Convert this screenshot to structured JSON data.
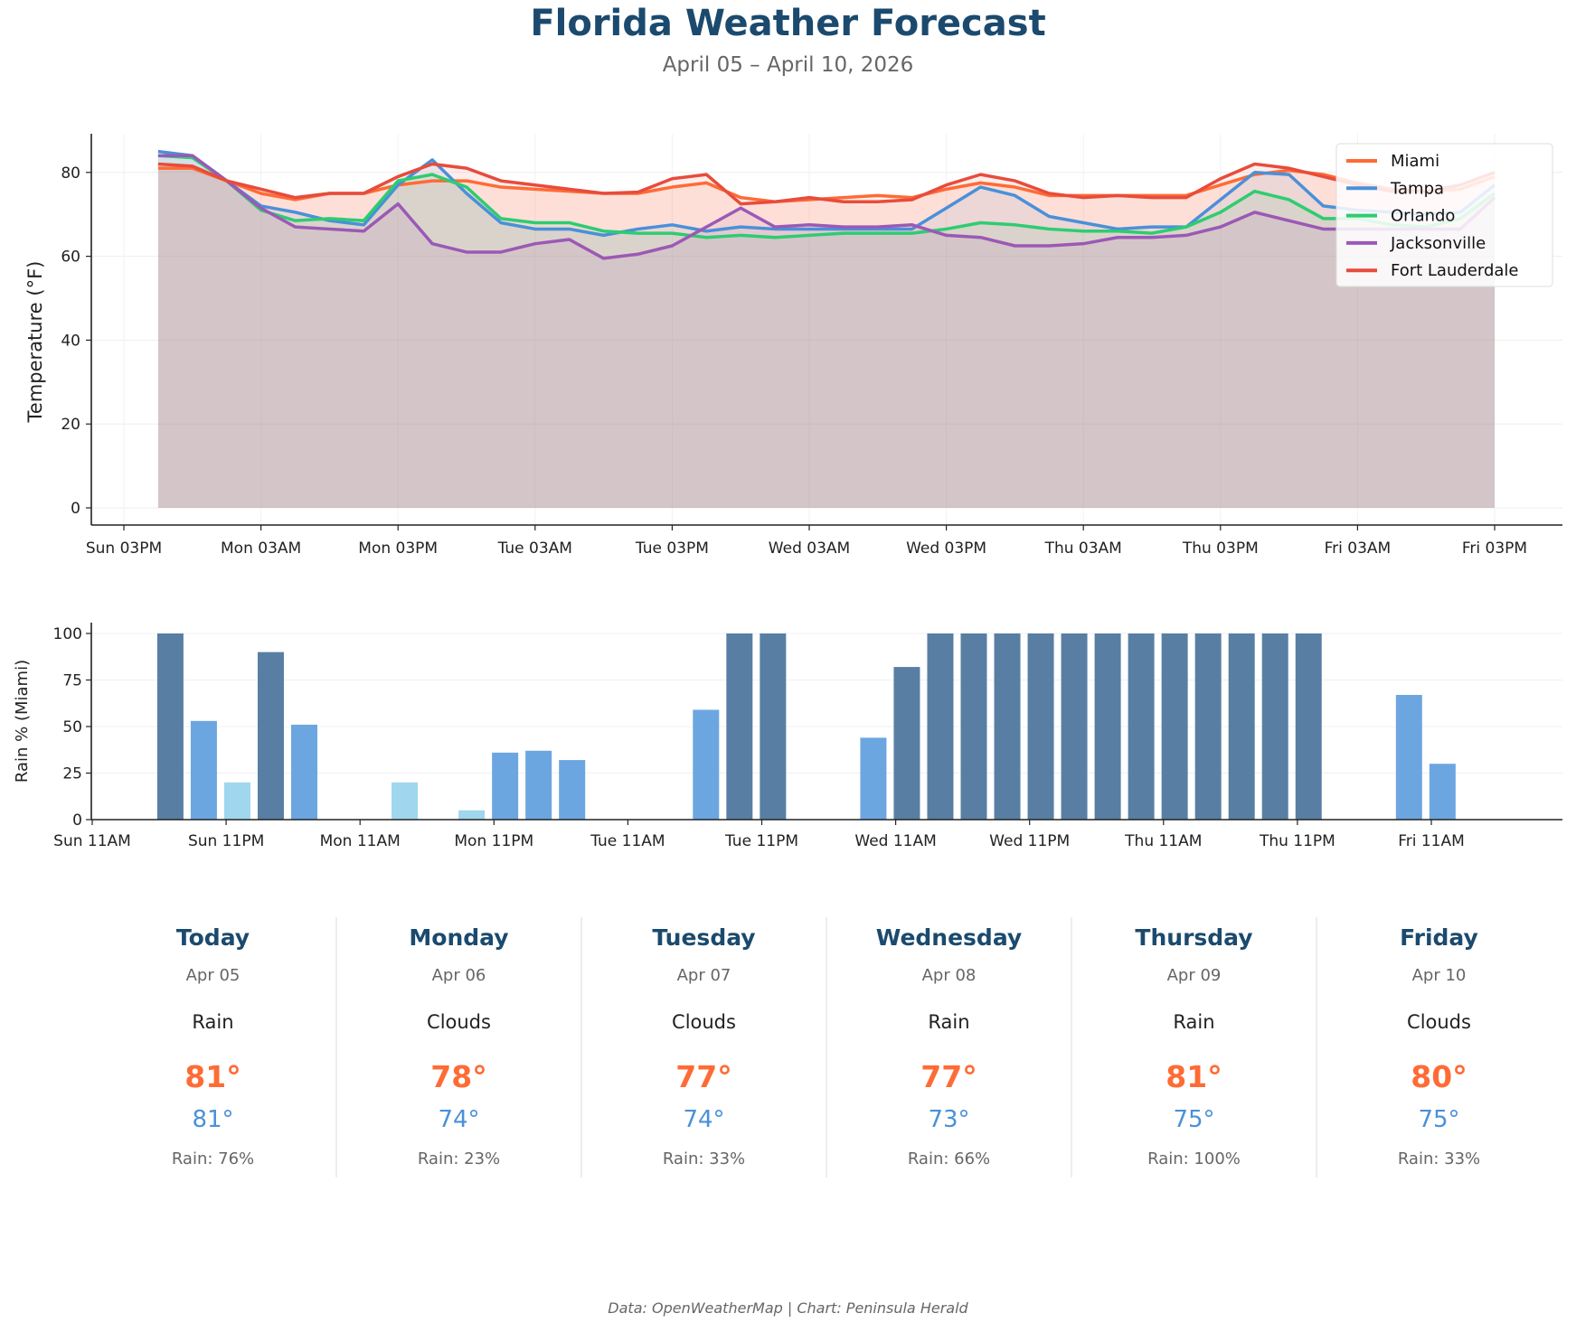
{
  "header": {
    "title": "Florida Weather Forecast",
    "subtitle": "April 05 – April 10, 2026"
  },
  "chart_data": [
    {
      "type": "line",
      "ylabel": "Temperature (°F)",
      "ylim": [
        -4.2,
        89.4
      ],
      "yticks": [
        0,
        20,
        40,
        60,
        80
      ],
      "xticks": [
        {
          "time": "2026-04-05T15:00",
          "label": "Sun 03PM"
        },
        {
          "time": "2026-04-06T03:00",
          "label": "Mon 03AM"
        },
        {
          "time": "2026-04-06T15:00",
          "label": "Mon 03PM"
        },
        {
          "time": "2026-04-07T03:00",
          "label": "Tue 03AM"
        },
        {
          "time": "2026-04-07T15:00",
          "label": "Tue 03PM"
        },
        {
          "time": "2026-04-08T03:00",
          "label": "Wed 03AM"
        },
        {
          "time": "2026-04-08T15:00",
          "label": "Wed 03PM"
        },
        {
          "time": "2026-04-09T03:00",
          "label": "Thu 03AM"
        },
        {
          "time": "2026-04-09T15:00",
          "label": "Thu 03PM"
        },
        {
          "time": "2026-04-10T03:00",
          "label": "Fri 03AM"
        },
        {
          "time": "2026-04-10T15:00",
          "label": "Fri 03PM"
        }
      ],
      "grid": true,
      "legend_position": "top-right",
      "fill_to_zero": true,
      "x": [
        "2026-04-05T18:00",
        "2026-04-05T21:00",
        "2026-04-06T00:00",
        "2026-04-06T03:00",
        "2026-04-06T06:00",
        "2026-04-06T09:00",
        "2026-04-06T12:00",
        "2026-04-06T15:00",
        "2026-04-06T18:00",
        "2026-04-06T21:00",
        "2026-04-07T00:00",
        "2026-04-07T03:00",
        "2026-04-07T06:00",
        "2026-04-07T09:00",
        "2026-04-07T12:00",
        "2026-04-07T15:00",
        "2026-04-07T18:00",
        "2026-04-07T21:00",
        "2026-04-08T00:00",
        "2026-04-08T03:00",
        "2026-04-08T06:00",
        "2026-04-08T09:00",
        "2026-04-08T12:00",
        "2026-04-08T15:00",
        "2026-04-08T18:00",
        "2026-04-08T21:00",
        "2026-04-09T00:00",
        "2026-04-09T03:00",
        "2026-04-09T06:00",
        "2026-04-09T09:00",
        "2026-04-09T12:00",
        "2026-04-09T15:00",
        "2026-04-09T18:00",
        "2026-04-09T21:00",
        "2026-04-10T00:00",
        "2026-04-10T03:00",
        "2026-04-10T06:00",
        "2026-04-10T09:00",
        "2026-04-10T12:00",
        "2026-04-10T15:00"
      ],
      "series": [
        {
          "name": "Miami",
          "color": "#ff6b35",
          "values": [
            81,
            81,
            78,
            75,
            73.5,
            75,
            75,
            77,
            78,
            78,
            76.5,
            76,
            75.5,
            75,
            75,
            76.5,
            77.5,
            74,
            73,
            73.5,
            74,
            74.5,
            74,
            76,
            77.5,
            76.5,
            74.5,
            74.5,
            74.5,
            74.5,
            74.5,
            77,
            79.5,
            80.5,
            79.5,
            77.5,
            76,
            75.5,
            76,
            79
          ]
        },
        {
          "name": "Tampa",
          "color": "#4a90d9",
          "values": [
            85,
            84,
            78,
            72,
            70.5,
            68.5,
            67.5,
            77,
            83,
            75,
            68,
            66.5,
            66.5,
            65,
            66.5,
            67.5,
            66,
            67,
            66.5,
            66.5,
            66.5,
            66.5,
            66.5,
            71.5,
            76.5,
            74.5,
            69.5,
            68,
            66.5,
            67,
            67,
            73.5,
            80,
            79.5,
            72,
            71,
            70.5,
            70,
            70.5,
            77
          ]
        },
        {
          "name": "Orlando",
          "color": "#2ecc71",
          "values": [
            84,
            83.5,
            78,
            71,
            68.5,
            69,
            68.5,
            78,
            79.5,
            76.5,
            69,
            68,
            68,
            66,
            65.5,
            65.5,
            64.5,
            65,
            64.5,
            65,
            65.5,
            65.5,
            65.5,
            66.5,
            68,
            67.5,
            66.5,
            66,
            66,
            65.5,
            67,
            70.5,
            75.5,
            73.5,
            69,
            69,
            67.5,
            67,
            69,
            75
          ]
        },
        {
          "name": "Jacksonville",
          "color": "#9b59b6",
          "values": [
            84,
            84,
            78,
            71.5,
            67,
            66.5,
            66,
            72.5,
            63,
            61,
            61,
            63,
            64,
            59.5,
            60.5,
            62.5,
            67,
            71.5,
            67,
            67.5,
            67,
            67,
            67.5,
            65,
            64.5,
            62.5,
            62.5,
            63,
            64.5,
            64.5,
            65,
            67,
            70.5,
            68.5,
            66.5,
            66.5,
            66.5,
            66.5,
            66.5,
            74
          ]
        },
        {
          "name": "Fort Lauderdale",
          "color": "#e74c3c",
          "values": [
            82,
            81.5,
            78,
            76,
            74,
            75,
            75,
            79,
            82,
            81,
            78,
            77,
            76,
            75,
            75.3,
            78.5,
            79.5,
            72.5,
            73,
            74,
            73,
            73,
            73.5,
            77,
            79.5,
            78,
            75,
            74,
            74.5,
            74,
            74,
            78.5,
            82,
            81,
            79,
            77,
            75.5,
            75.5,
            77,
            80
          ]
        }
      ]
    },
    {
      "type": "bar",
      "ylabel": "Rain % (Miami)",
      "ylim": [
        0,
        105
      ],
      "yticks": [
        0,
        25,
        50,
        75,
        100
      ],
      "grid": true,
      "xticks": [
        {
          "time": "2026-04-05T11:00",
          "label": "Sun 11AM"
        },
        {
          "time": "2026-04-05T23:00",
          "label": "Sun 11PM"
        },
        {
          "time": "2026-04-06T11:00",
          "label": "Mon 11AM"
        },
        {
          "time": "2026-04-06T23:00",
          "label": "Mon 11PM"
        },
        {
          "time": "2026-04-07T11:00",
          "label": "Tue 11AM"
        },
        {
          "time": "2026-04-07T23:00",
          "label": "Tue 11PM"
        },
        {
          "time": "2026-04-08T11:00",
          "label": "Wed 11AM"
        },
        {
          "time": "2026-04-08T23:00",
          "label": "Wed 11PM"
        },
        {
          "time": "2026-04-09T11:00",
          "label": "Thu 11AM"
        },
        {
          "time": "2026-04-09T23:00",
          "label": "Thu 11PM"
        },
        {
          "time": "2026-04-10T11:00",
          "label": "Fri 11AM"
        }
      ],
      "colors": {
        "high": "#587fa3",
        "medium": "#6ca6e0",
        "low": "#a0d6ee"
      },
      "values": [
        100,
        53,
        20,
        90,
        51,
        0,
        0,
        20,
        0,
        5,
        36,
        37,
        32,
        0,
        0,
        0,
        59,
        100,
        100,
        0,
        0,
        44,
        82,
        100,
        100,
        100,
        100,
        100,
        100,
        100,
        100,
        100,
        100,
        100,
        100,
        0,
        0,
        67,
        30,
        0
      ]
    }
  ],
  "forecast": [
    {
      "day": "Today",
      "date": "Apr 05",
      "condition": "Rain",
      "high": "81°",
      "low": "81°",
      "rain": "Rain: 76%"
    },
    {
      "day": "Monday",
      "date": "Apr 06",
      "condition": "Clouds",
      "high": "78°",
      "low": "74°",
      "rain": "Rain: 23%"
    },
    {
      "day": "Tuesday",
      "date": "Apr 07",
      "condition": "Clouds",
      "high": "77°",
      "low": "74°",
      "rain": "Rain: 33%"
    },
    {
      "day": "Wednesday",
      "date": "Apr 08",
      "condition": "Rain",
      "high": "77°",
      "low": "73°",
      "rain": "Rain: 66%"
    },
    {
      "day": "Thursday",
      "date": "Apr 09",
      "condition": "Rain",
      "high": "81°",
      "low": "75°",
      "rain": "Rain: 100%"
    },
    {
      "day": "Friday",
      "date": "Apr 10",
      "condition": "Clouds",
      "high": "80°",
      "low": "75°",
      "rain": "Rain: 33%"
    }
  ],
  "footer": "Data: OpenWeatherMap | Chart: Peninsula Herald"
}
